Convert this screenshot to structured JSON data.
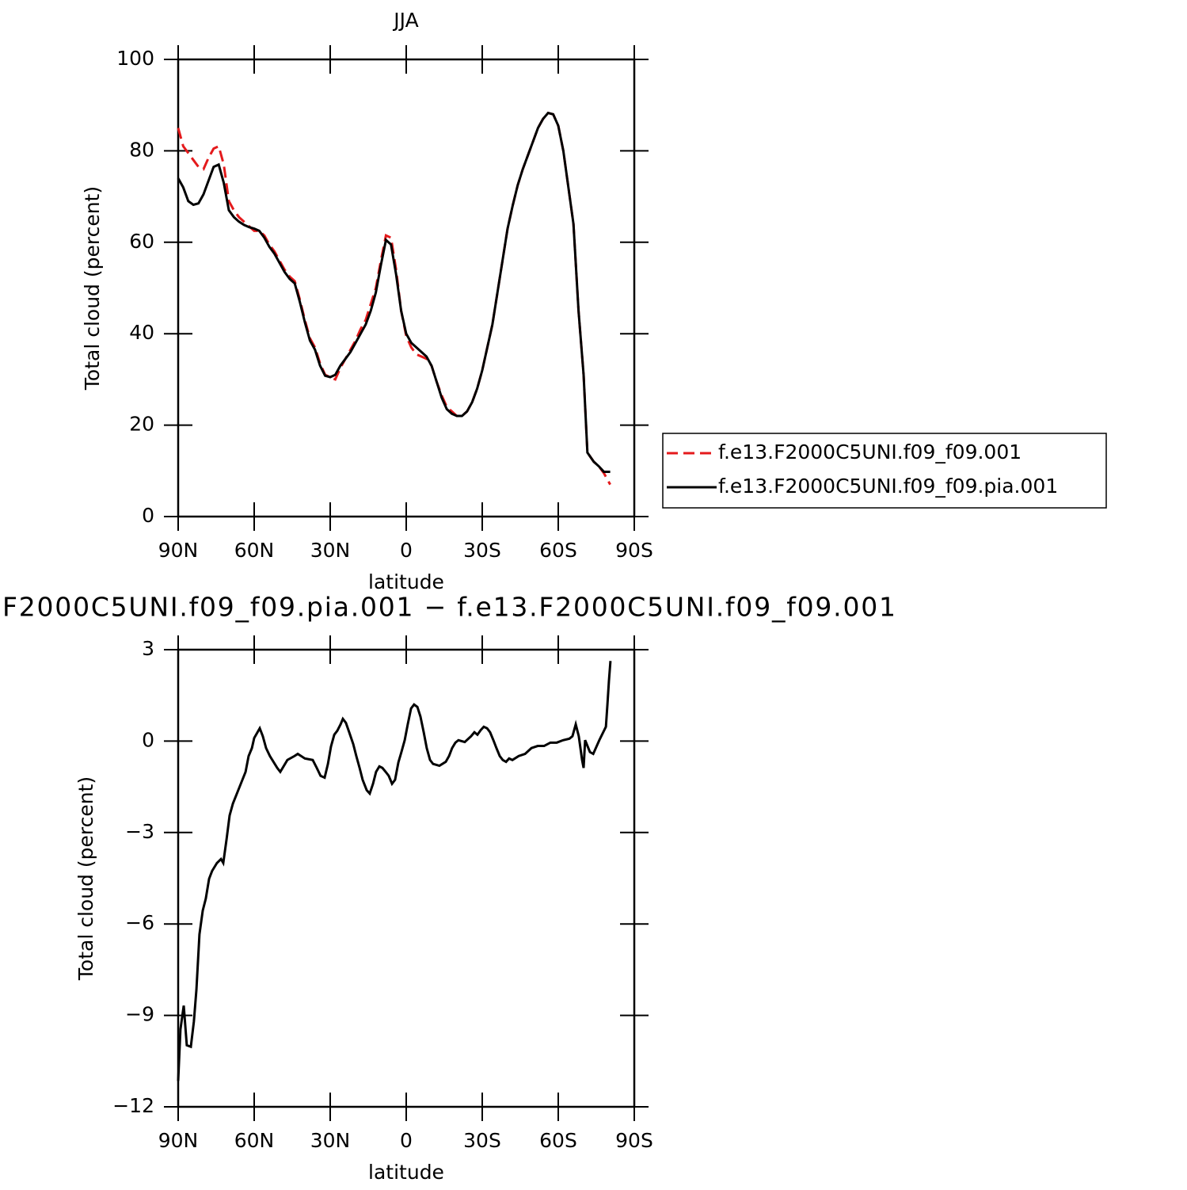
{
  "chart_data": [
    {
      "type": "line",
      "title": "JJA",
      "xlabel": "latitude",
      "ylabel": "Total cloud (percent)",
      "xlim": [
        90,
        -90
      ],
      "xticks": [
        {
          "value": 90,
          "label": "90N"
        },
        {
          "value": 60,
          "label": "60N"
        },
        {
          "value": 30,
          "label": "30N"
        },
        0,
        {
          "value": -30,
          "label": "30S"
        },
        {
          "value": -60,
          "label": "60S"
        },
        {
          "value": -90,
          "label": "90S"
        }
      ],
      "ylim": [
        0,
        100
      ],
      "yticks": [
        0,
        20,
        40,
        60,
        80,
        100
      ],
      "legend": "right",
      "x": [
        90,
        88,
        86,
        84,
        82,
        80,
        78,
        76,
        74,
        72,
        70,
        68,
        66,
        64,
        62,
        60,
        58,
        56,
        54,
        52,
        50,
        48,
        46,
        44,
        42,
        40,
        38,
        36,
        34,
        32,
        30,
        28,
        26,
        24,
        22,
        20,
        18,
        16,
        14,
        12,
        10,
        8,
        6,
        4,
        2,
        0,
        -2,
        -4,
        -6,
        -8,
        -10,
        -12,
        -14,
        -16,
        -18,
        -20,
        -22,
        -24,
        -26,
        -28,
        -30,
        -32,
        -34,
        -36,
        -38,
        -40,
        -42,
        -44,
        -46,
        -48,
        -50,
        -52,
        -54,
        -56,
        -58,
        -60,
        -62,
        -64,
        -66,
        -68,
        -70,
        -71.5,
        -74,
        -76,
        -78,
        -80.5
      ],
      "series": [
        {
          "name": "f.e13.F2000C5UNI.f09_f09.001",
          "color": "#e41a1c",
          "dashed": true,
          "values": [
            85,
            81,
            79.5,
            78,
            76.5,
            76,
            78.5,
            80.5,
            81,
            77,
            69,
            67,
            65.5,
            64.5,
            63.5,
            62.5,
            62.5,
            61.5,
            59.5,
            58,
            56,
            54,
            52.5,
            51.5,
            47.5,
            43,
            39,
            37,
            33.5,
            31,
            30.5,
            30,
            32.5,
            34.5,
            36.5,
            38.5,
            41,
            43,
            46.5,
            50,
            56,
            61.5,
            61,
            54,
            45,
            39.5,
            37,
            35.5,
            35,
            34.5,
            33,
            29.5,
            26.5,
            24,
            23,
            22,
            22,
            23,
            25,
            28,
            32,
            37,
            42,
            49,
            56,
            63,
            68,
            72.5,
            76,
            79,
            82,
            85,
            87,
            88.3,
            88,
            85.5,
            80,
            72,
            64,
            45,
            31,
            14,
            12,
            11,
            9.5,
            7
          ]
        },
        {
          "name": "f.e13.F2000C5UNI.f09_f09.pia.001",
          "color": "#000000",
          "dashed": false,
          "values": [
            74,
            72,
            69,
            68.2,
            68.5,
            70.5,
            73.5,
            76.5,
            77,
            73,
            67,
            65.5,
            64.5,
            63.8,
            63.3,
            63,
            62.5,
            61,
            59,
            57.5,
            55.5,
            53.5,
            52,
            51,
            47,
            42.5,
            38.5,
            36.5,
            33,
            30.8,
            30.5,
            31,
            33,
            34.5,
            36,
            38,
            40,
            42,
            45,
            49,
            55,
            60.5,
            59.5,
            53,
            45,
            40,
            38,
            37,
            36,
            35,
            33,
            29.5,
            26,
            23.5,
            22.5,
            22,
            22,
            23,
            25,
            28,
            32,
            37,
            42,
            49,
            56,
            63,
            68,
            72.5,
            76,
            79,
            82,
            85,
            87,
            88.3,
            88,
            85.5,
            80,
            72,
            64,
            45,
            31,
            14,
            12,
            11,
            9.8,
            9.8
          ]
        }
      ]
    },
    {
      "type": "line",
      "title": "F2000C5UNI.f09_f09.pia.001 − f.e13.F2000C5UNI.f09_f09.001",
      "xlabel": "latitude",
      "ylabel": "Total cloud (percent)",
      "xlim": [
        90,
        -90
      ],
      "xticks": [
        {
          "value": 90,
          "label": "90N"
        },
        {
          "value": 60,
          "label": "60N"
        },
        {
          "value": 30,
          "label": "30N"
        },
        0,
        {
          "value": -30,
          "label": "30S"
        },
        {
          "value": -60,
          "label": "60S"
        },
        {
          "value": -90,
          "label": "90S"
        }
      ],
      "ylim": [
        -12,
        3
      ],
      "yticks": [
        {
          "value": -12,
          "label": "−12"
        },
        {
          "value": -9,
          "label": "−9"
        },
        {
          "value": -6,
          "label": "−6"
        },
        {
          "value": -3,
          "label": "−3"
        },
        0,
        3
      ],
      "x": [
        90,
        89.1,
        87.8,
        86.6,
        85,
        83.8,
        82.8,
        81.6,
        80.3,
        79.1,
        77.8,
        76.6,
        74.7,
        73.1,
        72.2,
        70.9,
        69.7,
        68.4,
        65.9,
        63.4,
        62.2,
        60.9,
        60,
        57.8,
        56.6,
        55.3,
        53.8,
        50.9,
        49.7,
        46.9,
        44.1,
        42.8,
        40,
        36.9,
        35.3,
        33.8,
        32.2,
        30.9,
        29.7,
        28.4,
        27.2,
        25.9,
        25,
        23.8,
        22.5,
        20.9,
        19.7,
        18.4,
        17.2,
        15.6,
        14.4,
        13.1,
        11.9,
        10.6,
        9.4,
        8.1,
        6.9,
        5.6,
        4.4,
        3.1,
        1.9,
        0.6,
        -0.6,
        -1.9,
        -3.1,
        -4.4,
        -5.6,
        -6.9,
        -8.1,
        -9.4,
        -10.6,
        -13.1,
        -15.6,
        -16.9,
        -18.1,
        -19.4,
        -20.6,
        -23.1,
        -25.6,
        -26.9,
        -28.1,
        -29.4,
        -30.6,
        -31.9,
        -33.1,
        -34.4,
        -35.6,
        -36.9,
        -38.1,
        -39.4,
        -40.6,
        -41.9,
        -44.4,
        -46.9,
        -49.4,
        -51.9,
        -54.4,
        -56.9,
        -59.4,
        -61.9,
        -64.4,
        -65.6,
        -66.9,
        -68.1,
        -69.4,
        -70,
        -70.6,
        -72.5,
        -73.8,
        -76.2,
        -78.8,
        -79.4,
        -80,
        -80.6
      ],
      "series": [
        {
          "color": "#000000",
          "values": [
            -11.15,
            -9.46,
            -8.68,
            -9.98,
            -10.03,
            -9.2,
            -8.16,
            -6.34,
            -5.56,
            -5.17,
            -4.52,
            -4.26,
            -4,
            -3.87,
            -4,
            -3.22,
            -2.44,
            -2.05,
            -1.53,
            -1.01,
            -0.49,
            -0.23,
            0.1,
            0.42,
            0.16,
            -0.23,
            -0.49,
            -0.88,
            -1.01,
            -0.62,
            -0.49,
            -0.42,
            -0.57,
            -0.62,
            -0.88,
            -1.14,
            -1.2,
            -0.75,
            -0.18,
            0.21,
            0.34,
            0.55,
            0.73,
            0.6,
            0.29,
            -0.1,
            -0.49,
            -0.88,
            -1.27,
            -1.61,
            -1.72,
            -1.4,
            -1.01,
            -0.83,
            -0.88,
            -1.01,
            -1.14,
            -1.4,
            -1.27,
            -0.7,
            -0.36,
            0.03,
            0.55,
            1.07,
            1.2,
            1.12,
            0.81,
            0.29,
            -0.23,
            -0.62,
            -0.75,
            -0.81,
            -0.68,
            -0.49,
            -0.23,
            -0.05,
            0.03,
            -0.03,
            0.16,
            0.29,
            0.21,
            0.36,
            0.47,
            0.42,
            0.29,
            0.03,
            -0.23,
            -0.49,
            -0.62,
            -0.68,
            -0.57,
            -0.62,
            -0.49,
            -0.42,
            -0.23,
            -0.16,
            -0.16,
            -0.05,
            -0.05,
            0.03,
            0.08,
            0.16,
            0.55,
            0.16,
            -0.62,
            -0.88,
            0.03,
            -0.36,
            -0.42,
            0.03,
            0.47,
            1.2,
            1.98,
            2.63
          ]
        }
      ]
    }
  ]
}
